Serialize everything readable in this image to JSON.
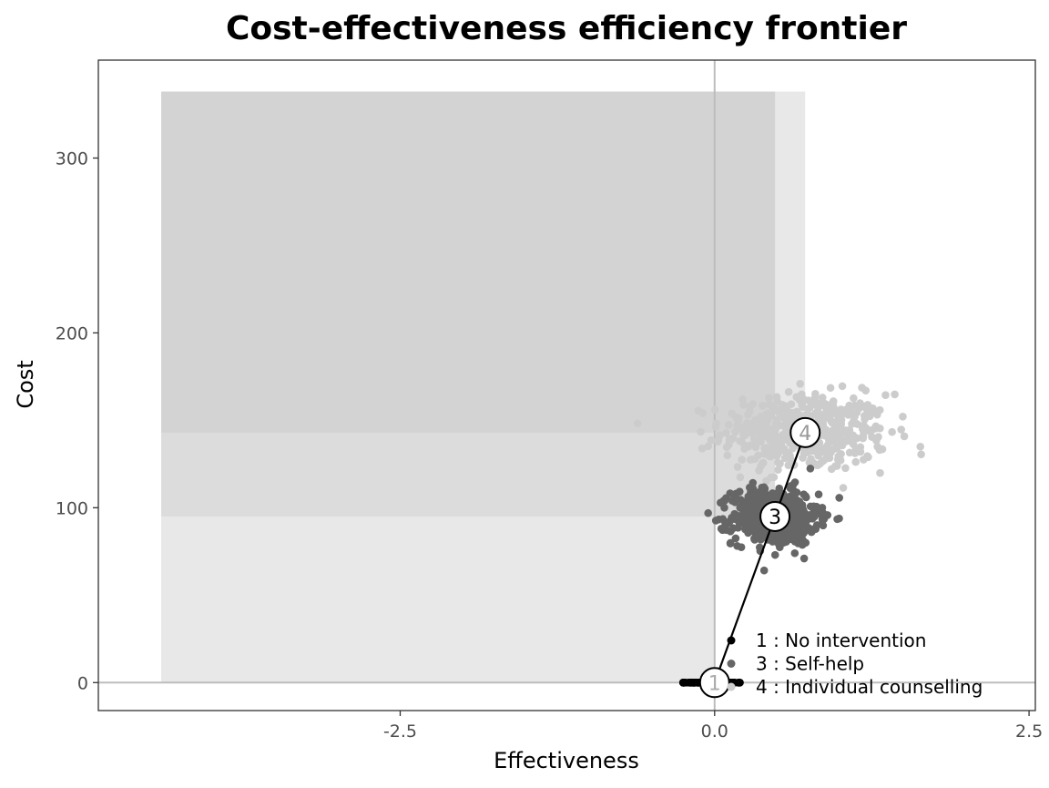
{
  "chart_data": {
    "type": "scatter",
    "title": "Cost-effectiveness efficiency frontier",
    "xlabel": "Effectiveness",
    "ylabel": "Cost",
    "xlim": [
      -4.9,
      2.55
    ],
    "ylim": [
      -16,
      356
    ],
    "x_ticks": [
      {
        "value": -2.5,
        "label": "-2.5"
      },
      {
        "value": 0.0,
        "label": "0.0"
      },
      {
        "value": 2.5,
        "label": "2.5"
      }
    ],
    "y_ticks": [
      {
        "value": 0,
        "label": "0"
      },
      {
        "value": 100,
        "label": "100"
      },
      {
        "value": 200,
        "label": "200"
      },
      {
        "value": 300,
        "label": "300"
      }
    ],
    "grid": false,
    "reference_lines": {
      "x": 0,
      "y": 0
    },
    "dominance_regions": [
      {
        "x0": -4.4,
        "x1": 0.0,
        "y0": 0,
        "y1": 338,
        "fill": "#e8e8e8"
      },
      {
        "x0": 0.0,
        "x1": 0.72,
        "y0": 143,
        "y1": 338,
        "fill": "#e8e8e8"
      },
      {
        "x0": -4.4,
        "x1": 0.48,
        "y0": 95,
        "y1": 338,
        "fill": "#dcdcdc"
      },
      {
        "x0": -4.4,
        "x1": 0.48,
        "y0": 143,
        "y1": 338,
        "fill": "#d3d3d3"
      }
    ],
    "series": [
      {
        "name": "1 : No intervention",
        "color": "#000000",
        "mean": {
          "x": 0.0,
          "y": 0.0
        },
        "spread": {
          "sx": 0.12,
          "sy": 0.0,
          "xmin": -0.25,
          "xmax": 0.35
        },
        "n": 150
      },
      {
        "name": "3 : Self-help",
        "color": "#666666",
        "mean": {
          "x": 0.48,
          "y": 95
        },
        "spread": {
          "sx": 0.17,
          "sy": 8
        },
        "n": 600
      },
      {
        "name": "4 : Individual counselling",
        "color": "#cccccc",
        "mean": {
          "x": 0.72,
          "y": 143
        },
        "spread": {
          "sx": 0.33,
          "sy": 11
        },
        "n": 500
      }
    ],
    "frontier": [
      {
        "id": "1",
        "x": 0.0,
        "y": 0,
        "label_color": "#aaaaaa"
      },
      {
        "id": "3",
        "x": 0.48,
        "y": 95,
        "label_color": "#000000"
      },
      {
        "id": "4",
        "x": 0.72,
        "y": 143,
        "label_color": "#999999"
      }
    ],
    "legend": {
      "position": "bottom-right-inside",
      "entries": [
        {
          "label": "1 : No intervention",
          "color": "#000000"
        },
        {
          "label": "3 : Self-help",
          "color": "#666666"
        },
        {
          "label": "4 : Individual counselling",
          "color": "#cccccc"
        }
      ]
    }
  }
}
